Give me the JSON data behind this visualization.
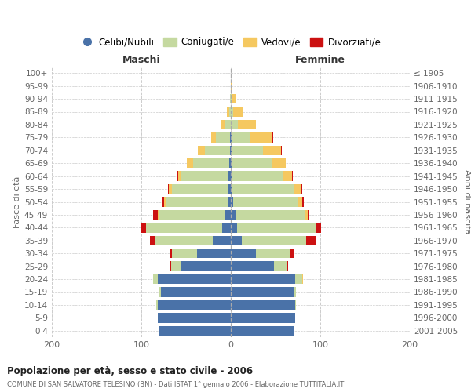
{
  "age_groups": [
    "0-4",
    "5-9",
    "10-14",
    "15-19",
    "20-24",
    "25-29",
    "30-34",
    "35-39",
    "40-44",
    "45-49",
    "50-54",
    "55-59",
    "60-64",
    "65-69",
    "70-74",
    "75-79",
    "80-84",
    "85-89",
    "90-94",
    "95-99",
    "100+"
  ],
  "birth_years": [
    "2001-2005",
    "1996-2000",
    "1991-1995",
    "1986-1990",
    "1981-1985",
    "1976-1980",
    "1971-1975",
    "1966-1970",
    "1961-1965",
    "1956-1960",
    "1951-1955",
    "1946-1950",
    "1941-1945",
    "1936-1940",
    "1931-1935",
    "1926-1930",
    "1921-1925",
    "1916-1920",
    "1911-1915",
    "1906-1910",
    "≤ 1905"
  ],
  "colors": {
    "celibi": "#4a72a8",
    "coniugati": "#c5d9a0",
    "vedovi": "#f5c860",
    "divorziati": "#cc1111"
  },
  "maschi": {
    "celibi": [
      80,
      82,
      82,
      78,
      82,
      55,
      38,
      20,
      10,
      6,
      3,
      3,
      3,
      2,
      1,
      1,
      0,
      0,
      0,
      0,
      0
    ],
    "coniugati": [
      0,
      0,
      1,
      3,
      5,
      12,
      28,
      65,
      85,
      75,
      70,
      63,
      52,
      40,
      28,
      16,
      6,
      2,
      1,
      0,
      0
    ],
    "vedovi": [
      0,
      0,
      0,
      0,
      0,
      0,
      0,
      0,
      0,
      1,
      2,
      3,
      4,
      7,
      8,
      5,
      5,
      2,
      0,
      0,
      0
    ],
    "divorziati": [
      0,
      0,
      0,
      0,
      0,
      1,
      2,
      5,
      5,
      5,
      2,
      1,
      1,
      0,
      0,
      0,
      0,
      0,
      0,
      0,
      0
    ]
  },
  "femmine": {
    "celibi": [
      70,
      72,
      72,
      70,
      72,
      48,
      28,
      12,
      7,
      5,
      3,
      2,
      2,
      2,
      1,
      1,
      0,
      0,
      0,
      0,
      0
    ],
    "coniugati": [
      0,
      0,
      1,
      3,
      8,
      14,
      38,
      72,
      88,
      78,
      72,
      68,
      56,
      44,
      35,
      20,
      8,
      3,
      1,
      0,
      0
    ],
    "vedovi": [
      0,
      0,
      0,
      0,
      1,
      0,
      0,
      0,
      1,
      3,
      5,
      8,
      10,
      15,
      20,
      25,
      20,
      10,
      5,
      2,
      0
    ],
    "divorziati": [
      0,
      0,
      0,
      0,
      0,
      2,
      5,
      12,
      5,
      2,
      2,
      2,
      1,
      0,
      1,
      1,
      0,
      0,
      0,
      0,
      0
    ]
  },
  "xlim": 200,
  "xticks": [
    -200,
    -100,
    0,
    100,
    200
  ],
  "title": "Popolazione per età, sesso e stato civile - 2006",
  "subtitle": "COMUNE DI SAN SALVATORE TELESINO (BN) - Dati ISTAT 1° gennaio 2006 - Elaborazione TUTTITALIA.IT",
  "ylabel_left": "Fasce di età",
  "ylabel_right": "Anni di nascita",
  "label_maschi": "Maschi",
  "label_femmine": "Femmine",
  "legend_labels": [
    "Celibi/Nubili",
    "Coniugati/e",
    "Vedovi/e",
    "Divorziati/e"
  ],
  "background_color": "#ffffff",
  "grid_color": "#cccccc",
  "bar_height": 0.75
}
